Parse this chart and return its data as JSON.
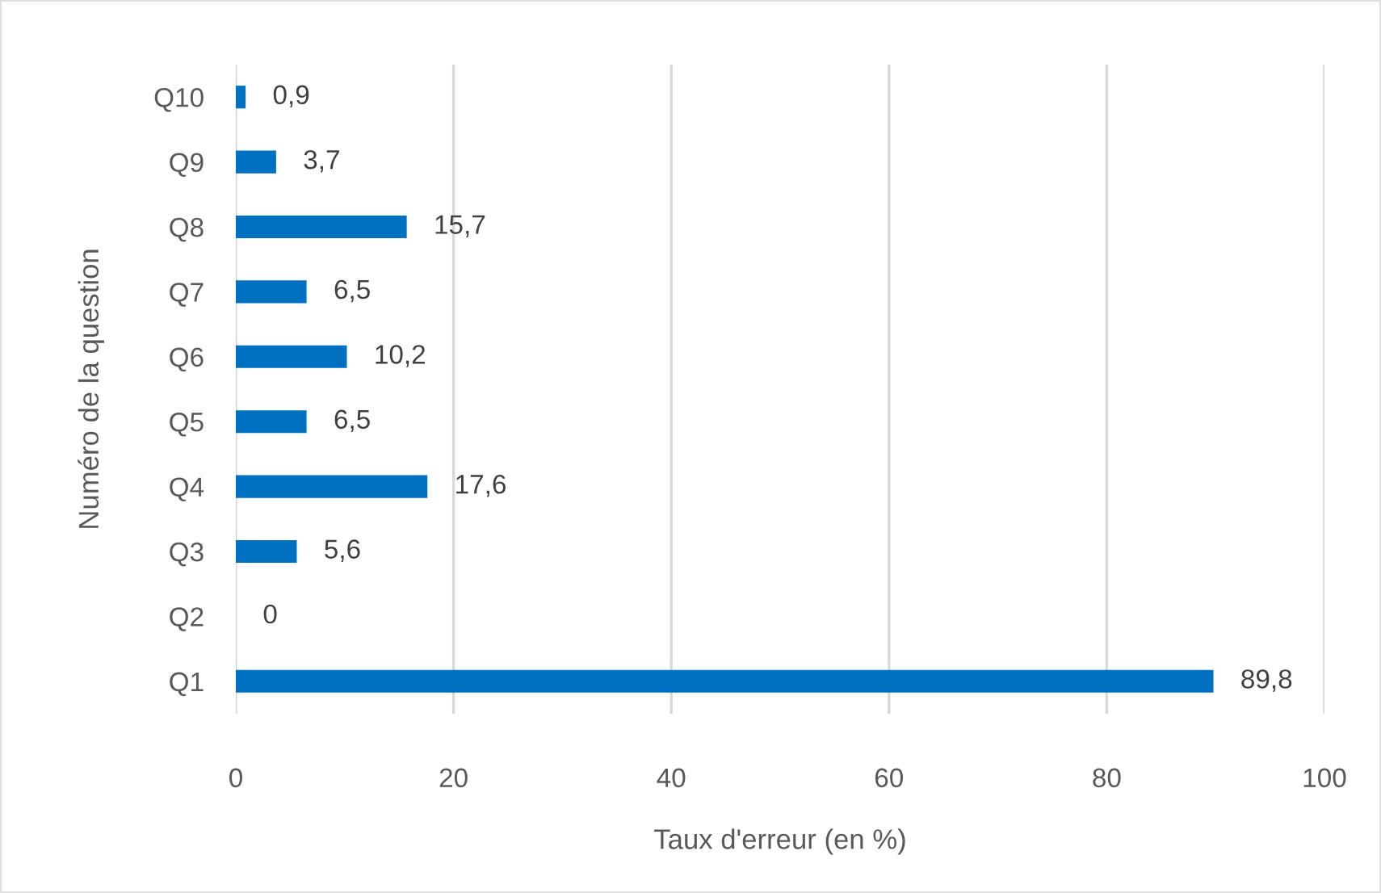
{
  "chart_data": {
    "type": "bar",
    "orientation": "horizontal",
    "categories": [
      "Q10",
      "Q9",
      "Q8",
      "Q7",
      "Q6",
      "Q5",
      "Q4",
      "Q3",
      "Q2",
      "Q1"
    ],
    "values": [
      0.9,
      3.7,
      15.7,
      6.5,
      10.2,
      6.5,
      17.6,
      5.6,
      0,
      89.8
    ],
    "value_labels": [
      "0,9",
      "3,7",
      "15,7",
      "6,5",
      "10,2",
      "6,5",
      "17,6",
      "5,6",
      "0",
      "89,8"
    ],
    "color": "#0070c0",
    "xlim": [
      0,
      100
    ],
    "xticks": [
      0,
      20,
      40,
      60,
      80,
      100
    ],
    "xlabel": "Taux d'erreur (en %)",
    "ylabel": "Numéro de la question",
    "grid": "x"
  }
}
